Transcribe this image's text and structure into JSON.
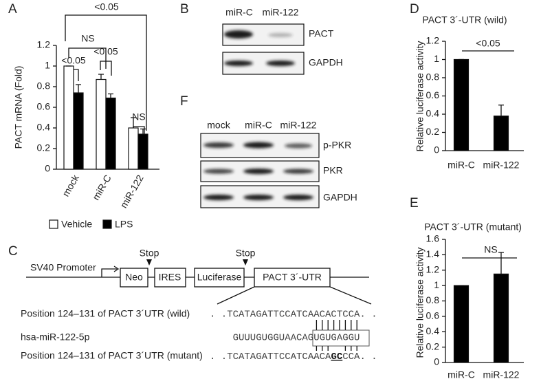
{
  "chart_data": [
    {
      "panel": "A",
      "type": "bar",
      "y_label": "PACT mRNA (Fold)",
      "categories": [
        "mock",
        "miR-C",
        "miR-122"
      ],
      "series": [
        {
          "name": "Vehicle",
          "color": "#ffffff",
          "values": [
            1,
            0.87,
            0.4
          ],
          "errors": [
            0,
            0.05,
            0.1
          ]
        },
        {
          "name": "LPS",
          "color": "#000000",
          "values": [
            0.74,
            0.69,
            0.34
          ],
          "errors": [
            0.08,
            0.04,
            0.05
          ]
        }
      ],
      "ylim": [
        0,
        1.2
      ],
      "yticks": [
        0,
        0.2,
        0.4,
        0.6,
        0.8,
        1,
        1.2
      ],
      "annotations": [
        "<0.05",
        "NS",
        "<0.05",
        "<0.05",
        "NS"
      ]
    },
    {
      "panel": "D",
      "type": "bar",
      "title": "PACT 3´-UTR (wild)",
      "y_label": "Relative luciferase activity",
      "categories": [
        "miR-C",
        "miR-122"
      ],
      "series": [
        {
          "color": "#000000",
          "values": [
            1,
            0.38
          ],
          "errors": [
            0,
            0.12
          ]
        }
      ],
      "ylim": [
        0,
        1.2
      ],
      "yticks": [
        0,
        0.2,
        0.4,
        0.6,
        0.8,
        1,
        1.2
      ],
      "annotations": [
        "<0.05"
      ]
    },
    {
      "panel": "E",
      "type": "bar",
      "title": "PACT 3´-UTR (mutant)",
      "y_label": "Relative luciferase activity",
      "categories": [
        "miR-C",
        "miR-122"
      ],
      "series": [
        {
          "color": "#000000",
          "values": [
            1,
            1.15
          ],
          "errors": [
            0,
            0.28
          ]
        }
      ],
      "ylim": [
        0,
        1.6
      ],
      "yticks": [
        0,
        0.2,
        0.4,
        0.6,
        0.8,
        1,
        1.2,
        1.4,
        1.6
      ],
      "annotations": [
        "NS"
      ]
    }
  ],
  "blot_b": {
    "panel": "B",
    "lanes": [
      "miR-C",
      "miR-122"
    ],
    "rows": [
      "PACT",
      "GAPDH"
    ]
  },
  "blot_f": {
    "panel": "F",
    "lanes": [
      "mock",
      "miR-C",
      "miR-122"
    ],
    "rows": [
      "p-PKR",
      "PKR",
      "GAPDH"
    ]
  },
  "construct": {
    "panel": "C",
    "promoter": "SV40 Promoter",
    "stop_labels": [
      "Stop",
      "Stop"
    ],
    "elements": [
      "Neo",
      "IRES",
      "Luciferase",
      "PACT 3´-UTR"
    ],
    "wild_label": "Position 124–131 of PACT 3´UTR (wild)",
    "wild_seq": ". .TCATAGATTCCATCAACACTCCA. .",
    "mirna_label": "hsa-miR-122-5p",
    "mirna_seq": "GUUUGUGGUAACAGUGUGAGGU",
    "mutant_label": "Position 124–131 of PACT 3´UTR (mutant)",
    "mutant_seq": [
      ". .TCATAGATTCCATCAACA",
      "GC",
      "CCA. ."
    ]
  }
}
